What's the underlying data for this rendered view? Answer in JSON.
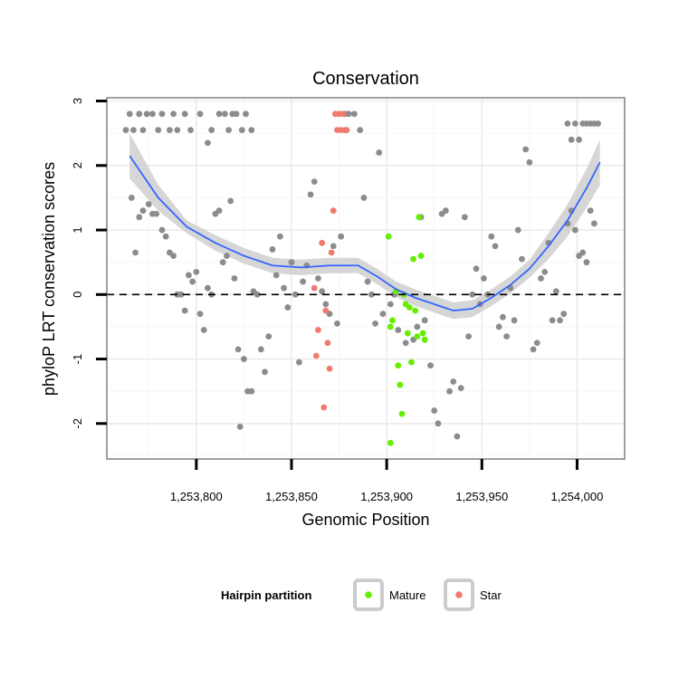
{
  "chart_data": {
    "type": "scatter",
    "title": "Conservation",
    "xlabel": "Genomic Position",
    "ylabel": "phyloP LRT conservation scores",
    "xlim": [
      1253753,
      1254025
    ],
    "ylim": [
      -2.55,
      3.05
    ],
    "x_ticks": [
      1253800,
      1253850,
      1253900,
      1253950,
      1254000
    ],
    "x_tick_labels": [
      "1,253,800",
      "1,253,850",
      "1,253,900",
      "1,253,950",
      "1,254,000"
    ],
    "y_ticks": [
      -2,
      -1,
      0,
      1,
      2,
      3
    ],
    "y_tick_labels": [
      "-2",
      "-1",
      "0",
      "1",
      "2",
      "3"
    ],
    "reference_line": {
      "y": 0,
      "style": "dashed"
    },
    "grid": true,
    "colors": {
      "other": "#8c8c8c",
      "Mature": "#66ee00",
      "Star": "#f07a6e",
      "smooth": "#3366ff",
      "ribbon": "#cfcfcf",
      "panel_border": "#808080"
    },
    "legend": {
      "title": "Hairpin partition",
      "position": "bottom",
      "entries": [
        {
          "label": "Mature",
          "color": "#66ee00"
        },
        {
          "label": "Star",
          "color": "#f07a6e"
        }
      ]
    },
    "series": [
      {
        "group": "other",
        "points": [
          [
            1253763,
            2.55
          ],
          [
            1253765,
            2.8
          ],
          [
            1253767,
            2.55
          ],
          [
            1253770,
            2.8
          ],
          [
            1253772,
            2.55
          ],
          [
            1253774,
            2.8
          ],
          [
            1253777,
            2.8
          ],
          [
            1253780,
            2.55
          ],
          [
            1253782,
            2.8
          ],
          [
            1253786,
            2.55
          ],
          [
            1253788,
            2.8
          ],
          [
            1253790,
            2.55
          ],
          [
            1253794,
            2.8
          ],
          [
            1253797,
            2.55
          ],
          [
            1253802,
            2.8
          ],
          [
            1253806,
            2.35
          ],
          [
            1253808,
            2.55
          ],
          [
            1253812,
            2.8
          ],
          [
            1253815,
            2.8
          ],
          [
            1253817,
            2.55
          ],
          [
            1253819,
            2.8
          ],
          [
            1253821,
            2.8
          ],
          [
            1253824,
            2.55
          ],
          [
            1253826,
            2.8
          ],
          [
            1253829,
            2.55
          ],
          [
            1253766,
            1.5
          ],
          [
            1253768,
            0.65
          ],
          [
            1253770,
            1.2
          ],
          [
            1253772,
            1.3
          ],
          [
            1253775,
            1.4
          ],
          [
            1253777,
            1.25
          ],
          [
            1253779,
            1.25
          ],
          [
            1253782,
            1.0
          ],
          [
            1253784,
            0.9
          ],
          [
            1253786,
            0.65
          ],
          [
            1253788,
            0.6
          ],
          [
            1253790,
            0.0
          ],
          [
            1253792,
            0.0
          ],
          [
            1253794,
            -0.25
          ],
          [
            1253796,
            0.3
          ],
          [
            1253798,
            0.2
          ],
          [
            1253800,
            0.35
          ],
          [
            1253802,
            -0.3
          ],
          [
            1253804,
            -0.55
          ],
          [
            1253806,
            0.1
          ],
          [
            1253808,
            0.0
          ],
          [
            1253810,
            1.25
          ],
          [
            1253812,
            1.3
          ],
          [
            1253814,
            0.5
          ],
          [
            1253816,
            0.6
          ],
          [
            1253818,
            1.45
          ],
          [
            1253820,
            0.25
          ],
          [
            1253822,
            -0.85
          ],
          [
            1253823,
            -2.05
          ],
          [
            1253825,
            -1.0
          ],
          [
            1253827,
            -1.5
          ],
          [
            1253829,
            -1.5
          ],
          [
            1253830,
            0.05
          ],
          [
            1253832,
            0.0
          ],
          [
            1253834,
            -0.85
          ],
          [
            1253836,
            -1.2
          ],
          [
            1253838,
            -0.65
          ],
          [
            1253840,
            0.7
          ],
          [
            1253842,
            0.3
          ],
          [
            1253844,
            0.9
          ],
          [
            1253846,
            0.1
          ],
          [
            1253848,
            -0.2
          ],
          [
            1253850,
            0.5
          ],
          [
            1253852,
            0.0
          ],
          [
            1253854,
            -1.05
          ],
          [
            1253856,
            0.2
          ],
          [
            1253858,
            0.45
          ],
          [
            1253860,
            1.55
          ],
          [
            1253862,
            1.75
          ],
          [
            1253864,
            0.25
          ],
          [
            1253866,
            0.05
          ],
          [
            1253868,
            -0.15
          ],
          [
            1253870,
            -0.3
          ],
          [
            1253872,
            0.75
          ],
          [
            1253874,
            -0.45
          ],
          [
            1253876,
            0.9
          ],
          [
            1253878,
            2.8
          ],
          [
            1253880,
            2.8
          ],
          [
            1253883,
            2.8
          ],
          [
            1253886,
            2.55
          ],
          [
            1253888,
            1.5
          ],
          [
            1253890,
            0.2
          ],
          [
            1253892,
            0.0
          ],
          [
            1253894,
            -0.45
          ],
          [
            1253896,
            2.2
          ],
          [
            1253898,
            -0.3
          ],
          [
            1253902,
            -0.15
          ],
          [
            1253904,
            0.0
          ],
          [
            1253906,
            -0.55
          ],
          [
            1253910,
            -0.75
          ],
          [
            1253914,
            -0.7
          ],
          [
            1253916,
            -0.5
          ],
          [
            1253918,
            1.2
          ],
          [
            1253920,
            -0.4
          ],
          [
            1253923,
            -1.1
          ],
          [
            1253925,
            -1.8
          ],
          [
            1253927,
            -2.0
          ],
          [
            1253929,
            1.25
          ],
          [
            1253931,
            1.3
          ],
          [
            1253933,
            -1.5
          ],
          [
            1253935,
            -1.35
          ],
          [
            1253937,
            -2.2
          ],
          [
            1253939,
            -1.45
          ],
          [
            1253941,
            1.2
          ],
          [
            1253943,
            -0.65
          ],
          [
            1253945,
            0.0
          ],
          [
            1253947,
            0.4
          ],
          [
            1253949,
            -0.15
          ],
          [
            1253951,
            0.25
          ],
          [
            1253953,
            0.0
          ],
          [
            1253955,
            0.9
          ],
          [
            1253957,
            0.75
          ],
          [
            1253959,
            -0.5
          ],
          [
            1253961,
            -0.35
          ],
          [
            1253963,
            -0.65
          ],
          [
            1253965,
            0.1
          ],
          [
            1253967,
            -0.4
          ],
          [
            1253969,
            1.0
          ],
          [
            1253971,
            0.55
          ],
          [
            1253973,
            2.25
          ],
          [
            1253975,
            2.05
          ],
          [
            1253977,
            -0.85
          ],
          [
            1253979,
            -0.75
          ],
          [
            1253981,
            0.25
          ],
          [
            1253983,
            0.35
          ],
          [
            1253985,
            0.8
          ],
          [
            1253987,
            -0.4
          ],
          [
            1253989,
            0.05
          ],
          [
            1253991,
            -0.4
          ],
          [
            1253993,
            -0.3
          ],
          [
            1253995,
            1.1
          ],
          [
            1253997,
            1.3
          ],
          [
            1253999,
            1.0
          ],
          [
            1254001,
            0.6
          ],
          [
            1254003,
            0.65
          ],
          [
            1254005,
            0.5
          ],
          [
            1254007,
            1.3
          ],
          [
            1254009,
            1.1
          ],
          [
            1253995,
            2.65
          ],
          [
            1253997,
            2.4
          ],
          [
            1253999,
            2.65
          ],
          [
            1254001,
            2.4
          ],
          [
            1254003,
            2.65
          ],
          [
            1254005,
            2.65
          ],
          [
            1254007,
            2.65
          ],
          [
            1254009,
            2.65
          ],
          [
            1254011,
            2.65
          ]
        ]
      },
      {
        "group": "Mature",
        "points": [
          [
            1253901,
            0.9
          ],
          [
            1253902,
            -0.5
          ],
          [
            1253903,
            -0.4
          ],
          [
            1253905,
            0.05
          ],
          [
            1253906,
            -1.1
          ],
          [
            1253907,
            -1.4
          ],
          [
            1253908,
            -1.85
          ],
          [
            1253909,
            0.0
          ],
          [
            1253910,
            -0.15
          ],
          [
            1253911,
            -0.6
          ],
          [
            1253912,
            -0.2
          ],
          [
            1253913,
            -1.05
          ],
          [
            1253914,
            0.55
          ],
          [
            1253915,
            -0.25
          ],
          [
            1253916,
            -0.65
          ],
          [
            1253917,
            1.2
          ],
          [
            1253918,
            0.6
          ],
          [
            1253919,
            -0.6
          ],
          [
            1253920,
            -0.7
          ],
          [
            1253902,
            -2.3
          ]
        ]
      },
      {
        "group": "Star",
        "points": [
          [
            1253862,
            0.1
          ],
          [
            1253863,
            -0.95
          ],
          [
            1253864,
            -0.55
          ],
          [
            1253866,
            0.8
          ],
          [
            1253867,
            -1.75
          ],
          [
            1253868,
            -0.25
          ],
          [
            1253869,
            -0.75
          ],
          [
            1253870,
            -1.15
          ],
          [
            1253871,
            0.65
          ],
          [
            1253872,
            1.3
          ],
          [
            1253873,
            2.8
          ],
          [
            1253874,
            2.55
          ],
          [
            1253875,
            2.8
          ],
          [
            1253876,
            2.55
          ],
          [
            1253877,
            2.8
          ],
          [
            1253878,
            2.55
          ],
          [
            1253879,
            2.55
          ]
        ]
      }
    ],
    "smooth": {
      "x": [
        1253765,
        1253780,
        1253795,
        1253810,
        1253825,
        1253840,
        1253855,
        1253870,
        1253885,
        1253895,
        1253905,
        1253915,
        1253925,
        1253935,
        1253945,
        1253955,
        1253965,
        1253975,
        1253985,
        1253995,
        1254005,
        1254012
      ],
      "y": [
        2.15,
        1.5,
        1.05,
        0.8,
        0.6,
        0.45,
        0.42,
        0.45,
        0.45,
        0.28,
        0.08,
        -0.05,
        -0.15,
        -0.25,
        -0.22,
        -0.05,
        0.15,
        0.4,
        0.75,
        1.15,
        1.65,
        2.05
      ],
      "lower": [
        1.8,
        1.3,
        0.95,
        0.68,
        0.48,
        0.33,
        0.3,
        0.33,
        0.33,
        0.16,
        -0.04,
        -0.18,
        -0.28,
        -0.38,
        -0.35,
        -0.18,
        0.02,
        0.26,
        0.55,
        0.9,
        1.35,
        1.7
      ],
      "upper": [
        2.5,
        1.7,
        1.15,
        0.92,
        0.72,
        0.57,
        0.54,
        0.57,
        0.57,
        0.4,
        0.2,
        0.08,
        -0.02,
        -0.12,
        -0.09,
        0.08,
        0.28,
        0.54,
        0.95,
        1.4,
        1.95,
        2.4
      ]
    }
  }
}
